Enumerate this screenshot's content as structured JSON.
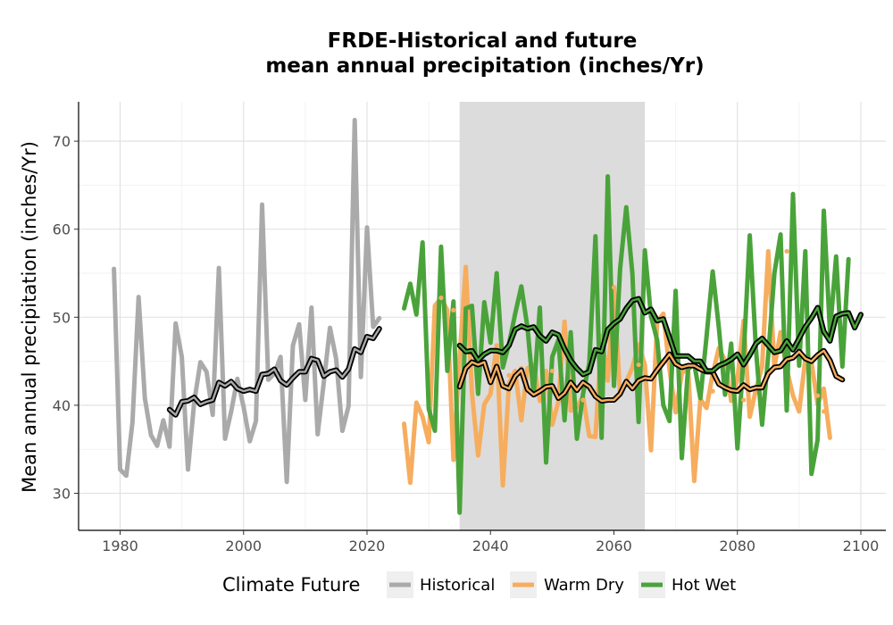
{
  "chart_data": {
    "type": "line",
    "title": "FRDE-Historical and future",
    "subtitle": "mean annual precipitation (inches/Yr)",
    "xlabel": "",
    "ylabel": "Mean annual precipitation (inches/Yr)",
    "xlim": [
      1976,
      2105
    ],
    "ylim": [
      26,
      75
    ],
    "x_ticks": [
      1980,
      2000,
      2020,
      2040,
      2060,
      2080,
      2100
    ],
    "y_ticks": [
      30,
      40,
      50,
      60,
      70
    ],
    "grid": true,
    "shaded_period": [
      2035,
      2065
    ],
    "legend": {
      "title": "Climate Future",
      "position": "bottom",
      "entries": [
        {
          "label": "Historical",
          "color": "#aaaaaa"
        },
        {
          "label": "Warm Dry",
          "color": "#f6ad5e"
        },
        {
          "label": "Hot Wet",
          "color": "#4aa33a"
        }
      ]
    },
    "series": [
      {
        "key": "historical",
        "label": "Historical",
        "color": "#aaaaaa",
        "x_start": 1979,
        "values": [
          55.5,
          32.7,
          32.0,
          38.0,
          52.3,
          40.8,
          36.6,
          35.4,
          38.3,
          35.3,
          49.3,
          45.5,
          32.7,
          40.3,
          44.9,
          43.8,
          38.9,
          55.6,
          36.2,
          39.3,
          43.0,
          39.8,
          35.9,
          38.2,
          62.8,
          42.9,
          43.6,
          45.5,
          31.3,
          46.8,
          49.2,
          40.6,
          51.1,
          36.7,
          42.6,
          48.8,
          45.3,
          37.1,
          39.9,
          72.4,
          43.2,
          60.2,
          48.9,
          49.9
        ]
      },
      {
        "key": "warm_dry",
        "label": "Warm Dry",
        "color": "#f6ad5e",
        "x_start": 2026,
        "values": [
          37.9,
          31.2,
          40.3,
          38.7,
          35.8,
          51.3,
          52.2,
          50.8,
          33.8,
          45.5,
          55.7,
          41.4,
          34.3,
          40.1,
          41.3,
          46.8,
          30.9,
          42.5,
          43.9,
          38.3,
          44.2,
          44.6,
          40.5,
          43.9,
          37.8,
          40.4,
          49.5,
          39.4,
          39.8,
          41.0,
          36.5,
          36.4,
          47.9,
          42.8,
          53.4,
          41.2,
          42.7,
          44.3,
          46.9,
          44.6,
          34.9,
          49.5,
          50.4,
          44.1,
          39.2,
          43.6,
          44.4,
          31.4,
          40.7,
          39.7,
          43.6,
          46.5,
          45.1,
          40.5,
          42.9,
          49.6,
          38.7,
          41.8,
          44.4,
          57.5,
          44.3,
          48.3,
          44.1,
          41.1,
          39.3,
          45.2,
          44.9,
          40.1,
          41.9,
          36.3
        ]
      },
      {
        "key": "hot_wet",
        "label": "Hot Wet",
        "color": "#4aa33a",
        "x_start": 2026,
        "values": [
          51.0,
          53.8,
          50.3,
          58.5,
          39.6,
          37.1,
          58.0,
          43.9,
          51.8,
          27.8,
          51.0,
          51.3,
          41.3,
          51.7,
          47.1,
          55.0,
          44.3,
          47.0,
          50.4,
          53.5,
          48.8,
          41.2,
          51.1,
          33.5,
          45.5,
          47.4,
          38.3,
          48.3,
          36.2,
          41.3,
          44.8,
          59.2,
          36.3,
          66.0,
          42.2,
          55.5,
          62.5,
          54.9,
          38.1,
          57.6,
          50.1,
          47.4,
          40.0,
          38.2,
          53.0,
          34.0,
          44.1,
          44.7,
          40.8,
          47.8,
          55.2,
          48.8,
          41.2,
          47.0,
          35.1,
          45.6,
          59.3,
          46.4,
          37.8,
          45.7,
          55.0,
          59.4,
          39.4,
          64.0,
          44.5,
          57.5,
          32.2,
          36.1,
          62.1,
          48.3,
          56.9,
          44.4,
          56.6
        ]
      },
      {
        "key": "hist_smooth",
        "label": "",
        "color": "#aaaaaa",
        "x_start": 1988,
        "values": [
          39.5,
          38.9,
          40.4,
          40.5,
          40.9,
          40.1,
          40.4,
          40.6,
          42.6,
          42.2,
          42.7,
          41.9,
          41.6,
          41.8,
          41.6,
          43.5,
          43.6,
          44.1,
          42.8,
          42.3,
          43.1,
          43.8,
          43.8,
          45.3,
          45.1,
          43.3,
          43.8,
          44.0,
          43.2,
          44.1,
          46.4,
          46.0,
          47.8,
          47.6,
          48.7
        ]
      },
      {
        "key": "warm_dry_smooth",
        "label": "",
        "color": "#f6ad5e",
        "x_start": 2035,
        "values": [
          42.1,
          44.2,
          44.9,
          44.6,
          44.9,
          42.6,
          44.4,
          42.2,
          41.9,
          43.3,
          44.0,
          41.8,
          41.2,
          41.6,
          42.1,
          42.2,
          40.8,
          41.4,
          42.6,
          41.7,
          42.6,
          42.1,
          41.0,
          40.5,
          40.6,
          40.6,
          41.3,
          42.7,
          41.9,
          42.8,
          43.1,
          43.0,
          44.0,
          44.9,
          45.8,
          44.7,
          44.3,
          44.5,
          44.5,
          44.1,
          43.8,
          43.8,
          42.4,
          42.0,
          41.7,
          41.6,
          42.3,
          41.8,
          42.0,
          42.0,
          43.6,
          44.3,
          44.4,
          45.2,
          45.4,
          46.1,
          45.3,
          45.0,
          45.7,
          46.2,
          45.1,
          43.3,
          42.9
        ]
      },
      {
        "key": "hot_wet_smooth",
        "label": "",
        "color": "#4aa33a",
        "x_start": 2035,
        "values": [
          46.8,
          46.1,
          46.2,
          45.1,
          45.8,
          46.2,
          46.2,
          46.0,
          46.8,
          48.6,
          49.0,
          48.7,
          48.9,
          47.9,
          47.3,
          48.3,
          48.0,
          46.4,
          45.1,
          44.2,
          43.5,
          43.8,
          46.3,
          46.1,
          48.6,
          49.3,
          49.8,
          51.0,
          51.9,
          52.1,
          50.5,
          50.9,
          49.6,
          49.8,
          47.7,
          45.6,
          45.6,
          45.6,
          45.0,
          45.0,
          43.9,
          43.9,
          44.5,
          44.8,
          45.2,
          45.8,
          44.6,
          45.7,
          47.0,
          47.6,
          46.8,
          46.0,
          46.2,
          47.3,
          46.3,
          47.6,
          48.9,
          49.9,
          51.1,
          48.4,
          47.3,
          50.1,
          50.4,
          50.5,
          48.8,
          50.3
        ]
      }
    ],
    "dot_series": [
      {
        "label": "Warm Dry",
        "x": [
          2032,
          2034,
          2036,
          2043,
          2045,
          2050,
          2053,
          2055,
          2060,
          2064,
          2068,
          2076,
          2081,
          2088,
          2093,
          2094
        ],
        "y": [
          52.2,
          50.8,
          55.7,
          43.4,
          44.2,
          43.9,
          39.4,
          40.6,
          53.4,
          44.6,
          49.8,
          41.6,
          40.6,
          57.5,
          41.1,
          39.3
        ]
      }
    ]
  }
}
